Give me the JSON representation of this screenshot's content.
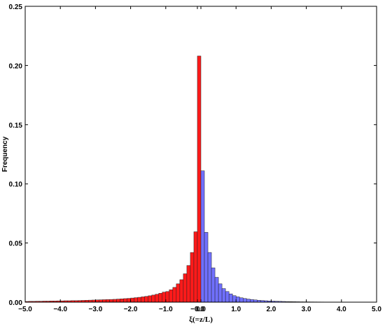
{
  "chart_data": {
    "type": "bar",
    "xlabel": "ξ(=z/L)",
    "ylabel": "Frequency",
    "xlim": [
      -5.0,
      5.0
    ],
    "ylim": [
      0,
      0.25
    ],
    "bin_width": 0.1,
    "x_ticks": [
      "−5.0",
      "−4.0",
      "−3.0",
      "−2.0",
      "−1.0",
      "−0.0",
      "0.0",
      "1.0",
      "2.0",
      "3.0",
      "4.0",
      "5.0"
    ],
    "x_tick_values": [
      -5.0,
      -4.0,
      -3.0,
      -2.0,
      -1.0,
      -0.1,
      0.0,
      1.0,
      2.0,
      3.0,
      4.0,
      5.0
    ],
    "y_ticks": [
      "0.00",
      "0.05",
      "0.10",
      "0.15",
      "0.20",
      "0.25"
    ],
    "y_tick_values": [
      0.0,
      0.05,
      0.1,
      0.15,
      0.2,
      0.25
    ],
    "series": [
      {
        "color": "#ff1a1a",
        "bins": [
          [
            -5.0,
            0.0006
          ],
          [
            -4.9,
            0.0007
          ],
          [
            -4.8,
            0.0007
          ],
          [
            -4.7,
            0.0008
          ],
          [
            -4.6,
            0.0008
          ],
          [
            -4.5,
            0.0009
          ],
          [
            -4.4,
            0.0009
          ],
          [
            -4.3,
            0.001
          ],
          [
            -4.2,
            0.001
          ],
          [
            -4.1,
            0.0011
          ],
          [
            -4.0,
            0.0011
          ],
          [
            -3.9,
            0.0012
          ],
          [
            -3.8,
            0.0012
          ],
          [
            -3.7,
            0.0013
          ],
          [
            -3.6,
            0.0013
          ],
          [
            -3.5,
            0.0014
          ],
          [
            -3.4,
            0.0015
          ],
          [
            -3.3,
            0.0016
          ],
          [
            -3.2,
            0.0017
          ],
          [
            -3.1,
            0.0018
          ],
          [
            -3.0,
            0.0019
          ],
          [
            -2.9,
            0.002
          ],
          [
            -2.8,
            0.0021
          ],
          [
            -2.7,
            0.0022
          ],
          [
            -2.6,
            0.0023
          ],
          [
            -2.5,
            0.0024
          ],
          [
            -2.4,
            0.0026
          ],
          [
            -2.3,
            0.0028
          ],
          [
            -2.2,
            0.003
          ],
          [
            -2.1,
            0.0032
          ],
          [
            -2.0,
            0.0035
          ],
          [
            -1.9,
            0.0038
          ],
          [
            -1.8,
            0.0041
          ],
          [
            -1.7,
            0.0045
          ],
          [
            -1.6,
            0.0049
          ],
          [
            -1.5,
            0.0054
          ],
          [
            -1.4,
            0.006
          ],
          [
            -1.3,
            0.0067
          ],
          [
            -1.2,
            0.0075
          ],
          [
            -1.1,
            0.0085
          ],
          [
            -1.0,
            0.009
          ],
          [
            -0.9,
            0.0105
          ],
          [
            -0.8,
            0.0125
          ],
          [
            -0.7,
            0.0155
          ],
          [
            -0.6,
            0.019
          ],
          [
            -0.5,
            0.024
          ],
          [
            -0.4,
            0.031
          ],
          [
            -0.3,
            0.042
          ],
          [
            -0.2,
            0.0595
          ],
          [
            -0.1,
            0.208
          ]
        ]
      },
      {
        "color": "#7070ff",
        "bins": [
          [
            0.0,
            0.111
          ],
          [
            0.1,
            0.059
          ],
          [
            0.2,
            0.042
          ],
          [
            0.3,
            0.029
          ],
          [
            0.4,
            0.021
          ],
          [
            0.5,
            0.0155
          ],
          [
            0.6,
            0.0115
          ],
          [
            0.7,
            0.009
          ],
          [
            0.8,
            0.007
          ],
          [
            0.9,
            0.0055
          ],
          [
            1.0,
            0.0045
          ],
          [
            1.1,
            0.0037
          ],
          [
            1.2,
            0.0031
          ],
          [
            1.3,
            0.0026
          ],
          [
            1.4,
            0.0022
          ],
          [
            1.5,
            0.0019
          ],
          [
            1.6,
            0.0016
          ],
          [
            1.7,
            0.0014
          ],
          [
            1.8,
            0.0012
          ],
          [
            1.9,
            0.001
          ],
          [
            2.0,
            0.0009
          ],
          [
            2.1,
            0.0008
          ],
          [
            2.2,
            0.0007
          ],
          [
            2.3,
            0.0006
          ],
          [
            2.4,
            0.0005
          ],
          [
            2.5,
            0.00045
          ],
          [
            2.6,
            0.0004
          ],
          [
            2.7,
            0.00035
          ],
          [
            2.8,
            0.0003
          ],
          [
            2.9,
            0.00028
          ],
          [
            3.0,
            0.00025
          ],
          [
            3.1,
            0.00022
          ],
          [
            3.2,
            0.0002
          ],
          [
            3.3,
            0.00018
          ],
          [
            3.4,
            0.00016
          ],
          [
            3.5,
            0.00014
          ],
          [
            3.6,
            0.00012
          ],
          [
            3.7,
            0.0001
          ],
          [
            3.8,
            0.0001
          ],
          [
            3.9,
            0.0001
          ]
        ]
      }
    ],
    "grid": false,
    "legend": "none"
  }
}
